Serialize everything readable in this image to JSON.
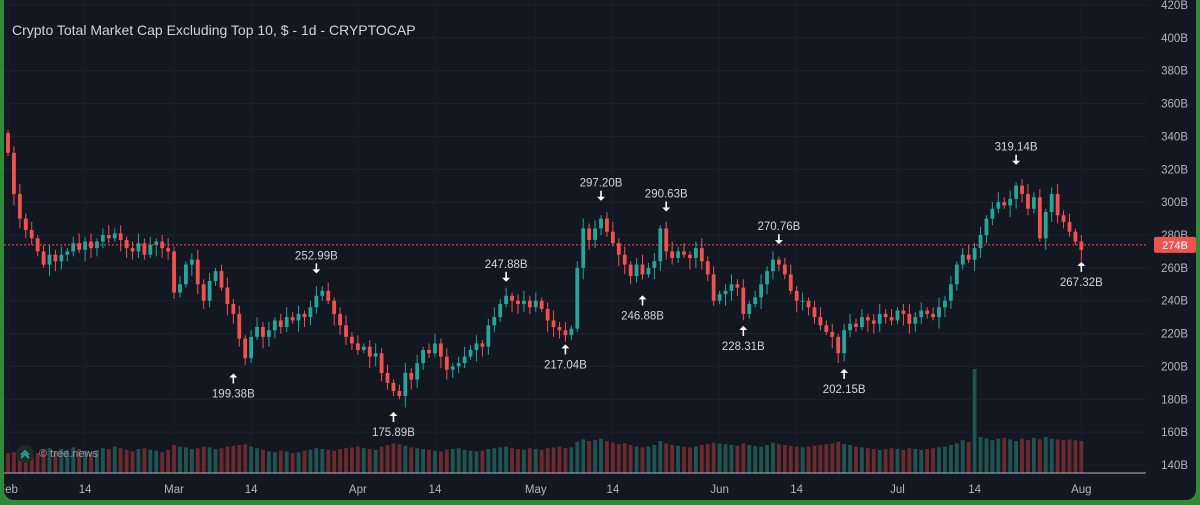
{
  "title": "Crypto Total Market Cap Excluding Top 10, $ - 1d - CRYPTOCAP",
  "watermark": "© tree.news",
  "current_price_label": "274B",
  "colors": {
    "up": "#26a69a",
    "down": "#ef5350",
    "background": "#131722",
    "grid": "#1f2330",
    "text": "#b2b5be"
  },
  "chart_data": {
    "type": "candlestick",
    "x_tick_labels": [
      "Feb",
      "14",
      "Mar",
      "14",
      "Apr",
      "14",
      "May",
      "14",
      "Jun",
      "14",
      "Jul",
      "14",
      "Aug"
    ],
    "y_tick_labels": [
      "140B",
      "160B",
      "180B",
      "200B",
      "220B",
      "240B",
      "260B",
      "280B",
      "300B",
      "320B",
      "340B",
      "360B",
      "380B",
      "400B",
      "420B"
    ],
    "ylim": [
      130,
      420
    ],
    "current_price": 274,
    "annotations": [
      {
        "text": "199.38B",
        "day": 38,
        "value": 199.38,
        "dir": "low"
      },
      {
        "text": "252.99B",
        "day": 52,
        "value": 252.99,
        "dir": "high"
      },
      {
        "text": "175.89B",
        "day": 65,
        "value": 175.89,
        "dir": "low"
      },
      {
        "text": "247.88B",
        "day": 84,
        "value": 247.88,
        "dir": "high"
      },
      {
        "text": "217.04B",
        "day": 94,
        "value": 217.04,
        "dir": "low"
      },
      {
        "text": "297.20B",
        "day": 100,
        "value": 297.2,
        "dir": "high"
      },
      {
        "text": "246.88B",
        "day": 107,
        "value": 246.88,
        "dir": "low"
      },
      {
        "text": "290.63B",
        "day": 111,
        "value": 290.63,
        "dir": "high"
      },
      {
        "text": "228.31B",
        "day": 124,
        "value": 228.31,
        "dir": "low"
      },
      {
        "text": "270.76B",
        "day": 130,
        "value": 270.76,
        "dir": "high"
      },
      {
        "text": "202.15B",
        "day": 141,
        "value": 202.15,
        "dir": "low"
      },
      {
        "text": "319.14B",
        "day": 170,
        "value": 319.14,
        "dir": "high"
      },
      {
        "text": "267.32B",
        "day": 181,
        "value": 267.32,
        "dir": "low"
      }
    ],
    "close": [
      330,
      305,
      290,
      283,
      278,
      270,
      262,
      268,
      264,
      268,
      270,
      275,
      271,
      276,
      272,
      276,
      280,
      278,
      281,
      277,
      272,
      270,
      275,
      268,
      274,
      276,
      272,
      270,
      245,
      250,
      262,
      265,
      250,
      240,
      252,
      258,
      248,
      238,
      232,
      217,
      205,
      218,
      224,
      218,
      222,
      228,
      224,
      230,
      228,
      232,
      230,
      236,
      243,
      246,
      240,
      232,
      225,
      218,
      214,
      210,
      212,
      206,
      208,
      196,
      190,
      185,
      182,
      196,
      192,
      202,
      210,
      208,
      214,
      206,
      198,
      200,
      202,
      206,
      210,
      214,
      212,
      225,
      230,
      238,
      243,
      240,
      238,
      240,
      236,
      240,
      235,
      228,
      224,
      222,
      219,
      223,
      260,
      284,
      277,
      284,
      290,
      282,
      275,
      268,
      262,
      255,
      262,
      256,
      260,
      264,
      284,
      270,
      266,
      270,
      268,
      266,
      272,
      264,
      256,
      240,
      244,
      246,
      250,
      248,
      232,
      238,
      242,
      250,
      258,
      265,
      262,
      256,
      246,
      240,
      240,
      236,
      230,
      225,
      221,
      218,
      208,
      222,
      226,
      224,
      230,
      228,
      226,
      232,
      230,
      228,
      234,
      232,
      226,
      230,
      234,
      232,
      230,
      236,
      240,
      250,
      262,
      268,
      265,
      272,
      280,
      290,
      296,
      300,
      298,
      302,
      310,
      305,
      296,
      303,
      278,
      294,
      305,
      292,
      288,
      282,
      276,
      271
    ],
    "volume": [
      50,
      52,
      56,
      60,
      54,
      50,
      58,
      62,
      55,
      60,
      58,
      64,
      60,
      56,
      52,
      58,
      62,
      60,
      66,
      62,
      58,
      54,
      60,
      62,
      58,
      56,
      52,
      58,
      70,
      66,
      64,
      60,
      62,
      66,
      64,
      60,
      62,
      66,
      68,
      70,
      72,
      66,
      62,
      58,
      54,
      52,
      56,
      54,
      50,
      52,
      56,
      58,
      62,
      60,
      58,
      56,
      60,
      62,
      64,
      66,
      62,
      60,
      58,
      66,
      70,
      74,
      72,
      68,
      64,
      62,
      60,
      58,
      56,
      54,
      58,
      60,
      62,
      58,
      56,
      54,
      56,
      60,
      62,
      64,
      66,
      62,
      60,
      58,
      62,
      60,
      58,
      62,
      64,
      66,
      62,
      64,
      78,
      84,
      80,
      82,
      86,
      80,
      76,
      72,
      74,
      70,
      66,
      64,
      66,
      70,
      80,
      74,
      70,
      68,
      66,
      64,
      66,
      70,
      72,
      76,
      74,
      72,
      70,
      68,
      74,
      70,
      68,
      66,
      70,
      76,
      72,
      70,
      68,
      66,
      64,
      66,
      68,
      70,
      72,
      74,
      78,
      72,
      70,
      66,
      64,
      62,
      60,
      58,
      60,
      62,
      60,
      58,
      62,
      60,
      58,
      60,
      62,
      64,
      66,
      70,
      74,
      82,
      78,
      260,
      90,
      86,
      82,
      86,
      88,
      84,
      80,
      86,
      82,
      88,
      84,
      90,
      86,
      84,
      82,
      84,
      82,
      80
    ]
  }
}
